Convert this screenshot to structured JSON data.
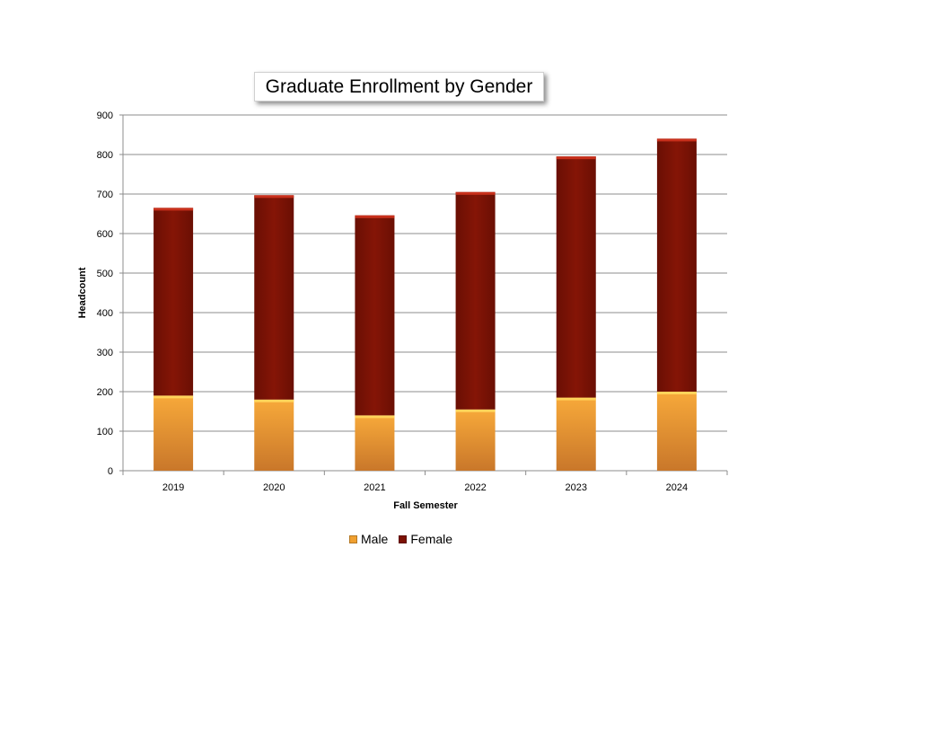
{
  "chart_data": {
    "type": "bar",
    "stacked": true,
    "title": "Graduate Enrollment by Gender",
    "xlabel": "Fall Semester",
    "ylabel": "Headcount",
    "categories": [
      "2019",
      "2020",
      "2021",
      "2022",
      "2023",
      "2024"
    ],
    "series": [
      {
        "name": "Male",
        "values": [
          190,
          180,
          140,
          155,
          185,
          200
        ],
        "color": "#f0a030"
      },
      {
        "name": "Female",
        "values": [
          475,
          517,
          506,
          550,
          610,
          640
        ],
        "color": "#7c1205"
      }
    ],
    "ylim": [
      0,
      900
    ],
    "yticks": [
      "0",
      "100",
      "200",
      "300",
      "400",
      "500",
      "600",
      "700",
      "800",
      "900"
    ],
    "grid": true,
    "legend_position": "bottom"
  }
}
